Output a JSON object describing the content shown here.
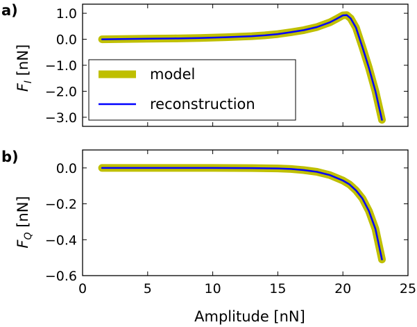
{
  "chart_data": [
    {
      "type": "line",
      "panel_label": "a)",
      "ylabel": "F_I [nN]",
      "ylabel_main": "F",
      "ylabel_sub": "I",
      "ylabel_unit": " [nN]",
      "xlim": [
        0,
        25
      ],
      "ylim": [
        -3.35,
        1.35
      ],
      "yticks": [
        1.0,
        0.0,
        -1.0,
        -2.0,
        -3.0
      ],
      "ytick_labels": [
        "1.0",
        "0.0",
        "−1.0",
        "−2.0",
        "−3.0"
      ],
      "xtick_labels_visible": false,
      "legend": {
        "position": "lower-left",
        "entries": [
          {
            "label": "model",
            "series": "model"
          },
          {
            "label": "reconstruction",
            "series": "reconstruction"
          }
        ]
      },
      "series": [
        {
          "name": "model",
          "color": "#bfbf00",
          "x": [
            1.5,
            3,
            5,
            7,
            9,
            11,
            13,
            14,
            15,
            16,
            17,
            18,
            19,
            19.5,
            20,
            20.3,
            20.6,
            21,
            21.5,
            22,
            22.5,
            23
          ],
          "y": [
            0.0,
            0.01,
            0.02,
            0.03,
            0.05,
            0.08,
            0.12,
            0.15,
            0.2,
            0.27,
            0.35,
            0.47,
            0.65,
            0.78,
            0.92,
            0.93,
            0.8,
            0.45,
            -0.3,
            -1.1,
            -2.0,
            -3.1
          ]
        },
        {
          "name": "reconstruction",
          "color": "#0000ff",
          "x": [
            1.5,
            3,
            5,
            7,
            9,
            11,
            13,
            14,
            15,
            16,
            17,
            18,
            19,
            19.5,
            20,
            20.3,
            20.6,
            21,
            21.5,
            22,
            22.5,
            23
          ],
          "y": [
            0.0,
            0.01,
            0.02,
            0.03,
            0.05,
            0.08,
            0.12,
            0.15,
            0.2,
            0.27,
            0.35,
            0.47,
            0.65,
            0.78,
            0.92,
            0.93,
            0.8,
            0.45,
            -0.3,
            -1.1,
            -2.0,
            -3.1
          ]
        }
      ]
    },
    {
      "type": "line",
      "panel_label": "b)",
      "ylabel": "F_Q [nN]",
      "ylabel_main": "F",
      "ylabel_sub": "Q",
      "ylabel_unit": " [nN]",
      "xlabel": "Amplitude [nN]",
      "xlim": [
        0,
        25
      ],
      "ylim": [
        -0.6,
        0.1
      ],
      "xticks": [
        0,
        5,
        10,
        15,
        20,
        25
      ],
      "xtick_labels": [
        "0",
        "5",
        "10",
        "15",
        "20",
        "25"
      ],
      "yticks": [
        0.0,
        -0.2,
        -0.4,
        -0.6
      ],
      "ytick_labels": [
        "0.0",
        "−0.2",
        "−0.4",
        "−0.6"
      ],
      "series": [
        {
          "name": "model",
          "color": "#bfbf00",
          "x": [
            1.5,
            5,
            10,
            13,
            15,
            16,
            17,
            18,
            19,
            20,
            20.5,
            21,
            21.5,
            22,
            22.5,
            23
          ],
          "y": [
            0.0,
            0.0,
            0.0,
            -0.001,
            -0.003,
            -0.006,
            -0.012,
            -0.022,
            -0.04,
            -0.07,
            -0.092,
            -0.125,
            -0.17,
            -0.24,
            -0.34,
            -0.51
          ]
        },
        {
          "name": "reconstruction",
          "color": "#0000ff",
          "x": [
            1.5,
            5,
            10,
            13,
            15,
            16,
            17,
            18,
            19,
            20,
            20.5,
            21,
            21.5,
            22,
            22.5,
            23
          ],
          "y": [
            0.0,
            0.0,
            0.0,
            -0.001,
            -0.003,
            -0.006,
            -0.012,
            -0.022,
            -0.04,
            -0.07,
            -0.092,
            -0.125,
            -0.17,
            -0.24,
            -0.34,
            -0.51
          ]
        }
      ]
    }
  ]
}
